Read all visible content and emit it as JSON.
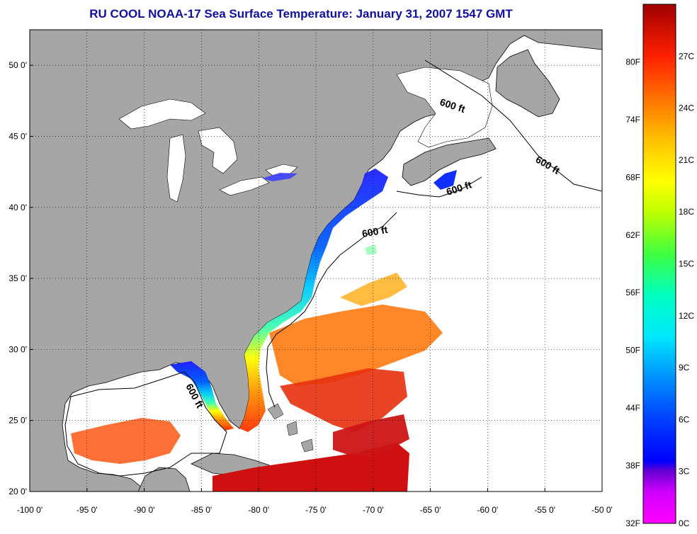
{
  "title": "RU COOL  NOAA-17  Sea Surface Temperature:  January 31, 2007 1547 GMT",
  "map": {
    "lon_range": [
      -100,
      -50
    ],
    "lat_range": [
      20,
      52.5
    ],
    "lon_ticks": [
      "-100 0'",
      "-95 0'",
      "-90 0'",
      "-85 0'",
      "-80 0'",
      "-75 0'",
      "-70 0'",
      "-65 0'",
      "-60 0'",
      "-55 0'",
      "-50 0'"
    ],
    "lat_ticks": [
      "20 0'",
      "25 0'",
      "30 0'",
      "35 0'",
      "40 0'",
      "45 0'",
      "50 0'"
    ],
    "grid": "dotted",
    "land_color": "#a6a6a6",
    "ocean_nodata_color": "#ffffff",
    "contour_labels": [
      "600 ft",
      "600 ft",
      "600 ft",
      "600 ft",
      "600 ft"
    ]
  },
  "colorbar": {
    "fahrenheit_labels": [
      "32F",
      "38F",
      "44F",
      "50F",
      "56F",
      "62F",
      "68F",
      "74F",
      "80F"
    ],
    "celsius_labels": [
      "0C",
      "3C",
      "6C",
      "9C",
      "12C",
      "15C",
      "18C",
      "21C",
      "24C",
      "27C"
    ],
    "range_c": [
      0,
      30
    ],
    "colors": [
      "#ff00ff",
      "#8a2be2",
      "#0000ff",
      "#0078ff",
      "#00e0ff",
      "#00ffb0",
      "#7fff00",
      "#ffff00",
      "#ffa000",
      "#ff4000",
      "#d00000",
      "#a00000"
    ]
  }
}
